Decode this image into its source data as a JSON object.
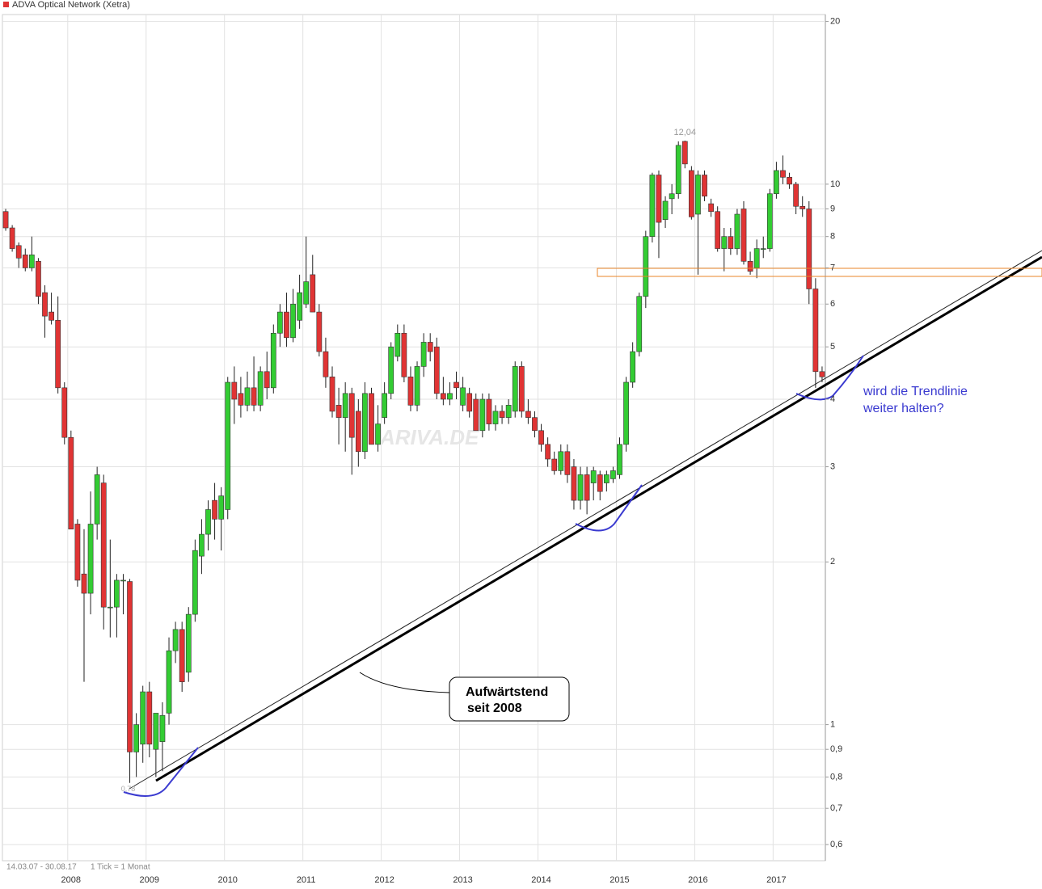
{
  "chart_data": {
    "type": "candlestick",
    "series": [
      {
        "name": "ADVA Optical Network (Xetra)",
        "up_color": "#33cc33",
        "down_color": "#e03434",
        "values": [
          [
            8.9,
            9.0,
            8.2,
            8.3
          ],
          [
            8.3,
            8.4,
            7.5,
            7.6
          ],
          [
            7.7,
            7.8,
            7.0,
            7.3
          ],
          [
            7.4,
            7.6,
            6.9,
            7.0
          ],
          [
            7.0,
            8.0,
            6.9,
            7.4
          ],
          [
            7.2,
            7.3,
            6.0,
            6.2
          ],
          [
            6.3,
            6.5,
            5.2,
            5.7
          ],
          [
            5.8,
            6.3,
            5.5,
            5.6
          ],
          [
            5.6,
            6.2,
            4.1,
            4.2
          ],
          [
            4.2,
            4.3,
            3.3,
            3.4
          ],
          [
            3.4,
            3.5,
            2.3,
            2.3
          ],
          [
            2.35,
            2.4,
            1.8,
            1.85
          ],
          [
            1.9,
            2.3,
            1.2,
            1.75
          ],
          [
            1.75,
            2.7,
            1.6,
            2.35
          ],
          [
            2.35,
            3.0,
            2.2,
            2.9
          ],
          [
            2.8,
            2.9,
            1.5,
            1.65
          ],
          [
            1.65,
            2.2,
            1.45,
            1.65
          ],
          [
            1.65,
            1.9,
            1.45,
            1.85
          ],
          [
            1.85,
            1.9,
            1.6,
            1.85
          ],
          [
            1.84,
            1.86,
            0.78,
            0.89
          ],
          [
            0.89,
            1.05,
            0.8,
            1.0
          ],
          [
            0.92,
            1.18,
            0.85,
            1.15
          ],
          [
            1.15,
            1.2,
            0.87,
            0.92
          ],
          [
            0.9,
            1.05,
            0.8,
            1.05
          ],
          [
            0.93,
            1.1,
            0.82,
            1.04
          ],
          [
            1.05,
            1.45,
            1.0,
            1.37
          ],
          [
            1.37,
            1.55,
            1.3,
            1.5
          ],
          [
            1.5,
            1.55,
            1.15,
            1.2
          ],
          [
            1.25,
            1.65,
            1.2,
            1.6
          ],
          [
            1.6,
            2.2,
            1.55,
            2.1
          ],
          [
            2.05,
            2.4,
            1.9,
            2.25
          ],
          [
            2.25,
            2.6,
            2.1,
            2.5
          ],
          [
            2.6,
            2.8,
            2.2,
            2.4
          ],
          [
            2.4,
            2.75,
            2.1,
            2.65
          ],
          [
            2.5,
            4.4,
            2.4,
            4.3
          ],
          [
            4.3,
            4.6,
            3.6,
            4.0
          ],
          [
            4.1,
            4.4,
            3.7,
            3.9
          ],
          [
            3.9,
            4.5,
            3.8,
            4.2
          ],
          [
            4.2,
            4.8,
            3.8,
            3.9
          ],
          [
            3.9,
            4.6,
            3.8,
            4.5
          ],
          [
            4.5,
            4.9,
            4.0,
            4.2
          ],
          [
            4.2,
            5.5,
            4.1,
            5.3
          ],
          [
            5.3,
            6.0,
            5.0,
            5.8
          ],
          [
            5.8,
            6.3,
            5.0,
            5.2
          ],
          [
            5.2,
            6.4,
            5.1,
            6.0
          ],
          [
            5.6,
            6.8,
            5.4,
            6.3
          ],
          [
            6.0,
            8.0,
            5.9,
            6.6
          ],
          [
            6.8,
            7.4,
            5.8,
            5.8
          ],
          [
            5.8,
            6.0,
            4.8,
            4.9
          ],
          [
            4.9,
            5.2,
            4.2,
            4.4
          ],
          [
            4.4,
            4.6,
            3.7,
            3.8
          ],
          [
            3.9,
            4.2,
            3.3,
            3.7
          ],
          [
            3.7,
            4.3,
            3.2,
            4.1
          ],
          [
            4.1,
            4.2,
            2.9,
            3.4
          ],
          [
            3.8,
            4.0,
            3.0,
            3.2
          ],
          [
            3.2,
            4.3,
            3.1,
            4.1
          ],
          [
            4.1,
            4.2,
            3.3,
            3.3
          ],
          [
            3.3,
            3.9,
            3.2,
            3.6
          ],
          [
            3.7,
            4.3,
            3.6,
            4.1
          ],
          [
            4.1,
            5.1,
            4.0,
            5.0
          ],
          [
            4.8,
            5.5,
            4.7,
            5.3
          ],
          [
            5.3,
            5.5,
            4.3,
            4.4
          ],
          [
            4.4,
            4.6,
            3.8,
            3.9
          ],
          [
            3.9,
            4.7,
            3.8,
            4.6
          ],
          [
            4.6,
            5.3,
            4.4,
            5.1
          ],
          [
            5.1,
            5.3,
            4.7,
            4.9
          ],
          [
            5.0,
            5.2,
            4.0,
            4.1
          ],
          [
            4.1,
            4.4,
            3.9,
            4.0
          ],
          [
            4.0,
            4.3,
            3.9,
            4.1
          ],
          [
            4.3,
            4.5,
            4.0,
            4.2
          ],
          [
            3.9,
            4.4,
            3.8,
            4.2
          ],
          [
            4.1,
            4.2,
            3.7,
            3.8
          ],
          [
            4.0,
            4.1,
            3.5,
            3.5
          ],
          [
            3.5,
            4.1,
            3.4,
            4.0
          ],
          [
            4.0,
            4.1,
            3.5,
            3.6
          ],
          [
            3.6,
            3.9,
            3.5,
            3.8
          ],
          [
            3.8,
            3.9,
            3.6,
            3.7
          ],
          [
            3.7,
            4.0,
            3.6,
            3.9
          ],
          [
            3.8,
            4.7,
            3.7,
            4.6
          ],
          [
            4.6,
            4.7,
            3.7,
            3.8
          ],
          [
            3.8,
            4.0,
            3.6,
            3.7
          ],
          [
            3.7,
            3.8,
            3.4,
            3.5
          ],
          [
            3.5,
            3.6,
            3.2,
            3.3
          ],
          [
            3.3,
            3.4,
            3.0,
            3.1
          ],
          [
            3.1,
            3.2,
            2.9,
            2.95
          ],
          [
            2.95,
            3.3,
            2.9,
            3.2
          ],
          [
            3.2,
            3.3,
            2.8,
            2.9
          ],
          [
            3.0,
            3.1,
            2.5,
            2.6
          ],
          [
            2.6,
            3.0,
            2.5,
            2.9
          ],
          [
            2.9,
            3.0,
            2.45,
            2.6
          ],
          [
            2.8,
            3.0,
            2.6,
            2.95
          ],
          [
            2.9,
            2.95,
            2.6,
            2.7
          ],
          [
            2.8,
            2.95,
            2.7,
            2.9
          ],
          [
            2.85,
            3.0,
            2.8,
            2.95
          ],
          [
            2.9,
            3.4,
            2.85,
            3.3
          ],
          [
            3.3,
            4.4,
            3.2,
            4.3
          ],
          [
            4.3,
            5.1,
            4.2,
            4.9
          ],
          [
            4.9,
            6.3,
            4.8,
            6.2
          ],
          [
            6.2,
            8.2,
            5.9,
            8.0
          ],
          [
            8.0,
            10.5,
            7.8,
            10.4
          ],
          [
            10.4,
            10.6,
            7.3,
            8.5
          ],
          [
            8.6,
            9.5,
            8.3,
            9.3
          ],
          [
            9.4,
            10.0,
            8.8,
            9.6
          ],
          [
            9.6,
            12.0,
            9.4,
            11.8
          ],
          [
            12.0,
            12.04,
            10.7,
            10.9
          ],
          [
            10.6,
            10.8,
            8.6,
            8.7
          ],
          [
            8.8,
            10.6,
            6.8,
            10.4
          ],
          [
            10.4,
            10.6,
            9.3,
            9.5
          ],
          [
            9.2,
            9.4,
            8.7,
            8.9
          ],
          [
            8.9,
            9.1,
            7.5,
            7.6
          ],
          [
            7.6,
            8.3,
            6.9,
            8.0
          ],
          [
            8.0,
            8.3,
            7.4,
            7.6
          ],
          [
            7.6,
            9.0,
            7.4,
            8.8
          ],
          [
            9.0,
            9.3,
            7.1,
            7.2
          ],
          [
            7.2,
            7.5,
            6.8,
            6.9
          ],
          [
            7.0,
            7.9,
            6.7,
            7.6
          ],
          [
            7.6,
            8.0,
            7.3,
            7.6
          ],
          [
            7.6,
            9.8,
            7.5,
            9.6
          ],
          [
            9.6,
            11.0,
            9.4,
            10.6
          ],
          [
            10.6,
            11.3,
            10.0,
            10.3
          ],
          [
            10.3,
            10.5,
            9.8,
            10.0
          ],
          [
            10.0,
            10.1,
            8.8,
            9.1
          ],
          [
            9.1,
            9.5,
            8.7,
            9.0
          ],
          [
            9.0,
            9.3,
            6.0,
            6.4
          ],
          [
            6.4,
            6.7,
            4.2,
            4.5
          ],
          [
            4.5,
            4.6,
            4.3,
            4.4
          ]
        ]
      }
    ],
    "categories": [
      null,
      null,
      null,
      null,
      null,
      null,
      null,
      null,
      null,
      null,
      "2008",
      null,
      null,
      null,
      null,
      null,
      null,
      null,
      null,
      null,
      null,
      null,
      "2009",
      null,
      null,
      null,
      null,
      null,
      null,
      null,
      null,
      null,
      null,
      null,
      "2010",
      null,
      null,
      null,
      null,
      null,
      null,
      null,
      null,
      null,
      null,
      null,
      "2011",
      null,
      null,
      null,
      null,
      null,
      null,
      null,
      null,
      null,
      null,
      null,
      "2012",
      null,
      null,
      null,
      null,
      null,
      null,
      null,
      null,
      null,
      null,
      null,
      "2013",
      null,
      null,
      null,
      null,
      null,
      null,
      null,
      null,
      null,
      null,
      null,
      "2014",
      null,
      null,
      null,
      null,
      null,
      null,
      null,
      null,
      null,
      null,
      null,
      "2015",
      null,
      null,
      null,
      null,
      null,
      null,
      null,
      null,
      null,
      null,
      null,
      "2016",
      null,
      null,
      null,
      null,
      null,
      null,
      null,
      null,
      null,
      null,
      null,
      "2017",
      null,
      null,
      null,
      null,
      null,
      null,
      null
    ],
    "ylim": [
      0.56,
      20.6
    ],
    "log_scale": true,
    "grid": true,
    "yticks": [
      {
        "value": 0.6,
        "label": "0,6"
      },
      {
        "value": 0.7,
        "label": "0,7"
      },
      {
        "value": 0.8,
        "label": "0,8"
      },
      {
        "value": 0.9,
        "label": "0,9"
      },
      1,
      2,
      3,
      4,
      5,
      6,
      7,
      8,
      9,
      10,
      20
    ],
    "max_label": "12,04",
    "min_label": "0,78",
    "date_range": "14.03.07 - 30.08.17",
    "tick_note": "1 Tick = 1 Monat",
    "watermark": "ARIVA.DE",
    "annotations": [
      "Aufwärtstend",
      "seit 2008",
      "wird die Trendlinie",
      "weiter halten?"
    ]
  }
}
